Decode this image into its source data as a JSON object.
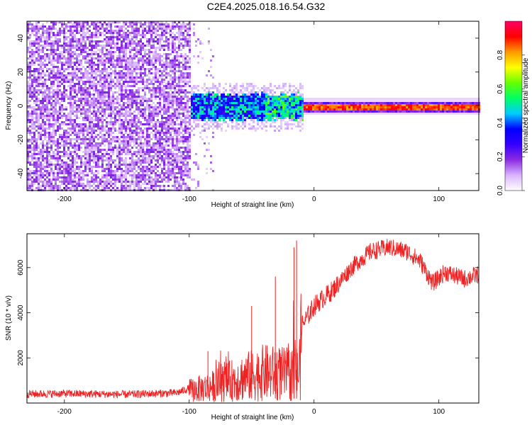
{
  "title": "C2E4.2025.018.16.54.G32",
  "chart_data": [
    {
      "type": "heatmap",
      "name": "spectrogram",
      "xlabel": "Height of straight line (km)",
      "ylabel": "Frequency (Hz)",
      "xlim": [
        -230,
        132
      ],
      "ylim": [
        -50,
        50
      ],
      "xticks": [
        -200,
        -100,
        0,
        100
      ],
      "yticks": [
        -40,
        -20,
        0,
        20,
        40
      ],
      "colorbar": {
        "label": "Normalized spectral amplitude",
        "range": [
          0.0,
          1.0
        ],
        "ticks": [
          0.0,
          0.2,
          0.4,
          0.6,
          0.8
        ],
        "colormap": [
          "#ffffff",
          "#d9b3ff",
          "#8a2be2",
          "#3300ff",
          "#0000ff",
          "#00ccff",
          "#00ff66",
          "#66ff00",
          "#ffff00",
          "#ff9900",
          "#ff0000",
          "#ff0066"
        ]
      },
      "regions": [
        {
          "x_from": -230,
          "x_to": -100,
          "description_level": "broadband noise",
          "amplitude": 0.1
        },
        {
          "x_from": -100,
          "x_to": -10,
          "center_freq": 0,
          "half_width_hz": 7,
          "amplitude": 0.4
        },
        {
          "x_from": -10,
          "x_to": 132,
          "center_freq": 0,
          "half_width_hz": 3,
          "amplitude": 0.85
        }
      ]
    },
    {
      "type": "line",
      "name": "snr",
      "xlabel": "Height of straight line (km)",
      "ylabel": "SNR (10 * v/v)",
      "xlim": [
        -230,
        132
      ],
      "ylim": [
        0,
        7500
      ],
      "xticks": [
        -200,
        -100,
        0,
        100
      ],
      "yticks": [
        2000,
        4000,
        6000
      ],
      "color": "#ee2222",
      "envelope": [
        {
          "x": -230,
          "y": 400
        },
        {
          "x": -200,
          "y": 420
        },
        {
          "x": -150,
          "y": 380
        },
        {
          "x": -110,
          "y": 450
        },
        {
          "x": -100,
          "y": 650
        },
        {
          "x": -80,
          "y": 900
        },
        {
          "x": -60,
          "y": 1300
        },
        {
          "x": -40,
          "y": 1600
        },
        {
          "x": -20,
          "y": 1500
        },
        {
          "x": -12,
          "y": 1600
        },
        {
          "x": -10,
          "y": 3400
        },
        {
          "x": 0,
          "y": 4300
        },
        {
          "x": 15,
          "y": 5000
        },
        {
          "x": 30,
          "y": 6000
        },
        {
          "x": 45,
          "y": 6700
        },
        {
          "x": 60,
          "y": 6900
        },
        {
          "x": 75,
          "y": 6700
        },
        {
          "x": 85,
          "y": 6300
        },
        {
          "x": 95,
          "y": 5300
        },
        {
          "x": 105,
          "y": 5800
        },
        {
          "x": 120,
          "y": 5500
        },
        {
          "x": 132,
          "y": 5700
        }
      ],
      "peaks": [
        {
          "x": -14,
          "y": 7200
        },
        {
          "x": -31,
          "y": 5600
        },
        {
          "x": -50,
          "y": 4300
        },
        {
          "x": -85,
          "y": 2300
        },
        {
          "x": -16,
          "y": 6900
        }
      ]
    }
  ]
}
